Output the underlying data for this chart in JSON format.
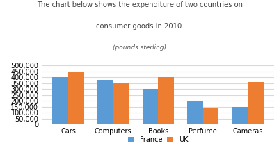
{
  "title_line1": "The chart below shows the expenditure of two countries on",
  "title_line2": "consumer goods in 2010.",
  "subtitle": "(pounds sterling)",
  "categories": [
    "Cars",
    "Computers",
    "Books",
    "Perfume",
    "Cameras"
  ],
  "france": [
    400000,
    380000,
    300000,
    200000,
    150000
  ],
  "uk": [
    450000,
    350000,
    405000,
    135000,
    360000
  ],
  "france_color": "#5b9bd5",
  "uk_color": "#ed7d31",
  "ylim": [
    0,
    500000
  ],
  "yticks": [
    0,
    50000,
    100000,
    150000,
    200000,
    250000,
    300000,
    350000,
    400000,
    450000,
    500000
  ],
  "bar_width": 0.35,
  "legend_labels": [
    "France",
    "UK"
  ],
  "bg_color": "#ffffff",
  "grid_color": "#d9d9d9"
}
